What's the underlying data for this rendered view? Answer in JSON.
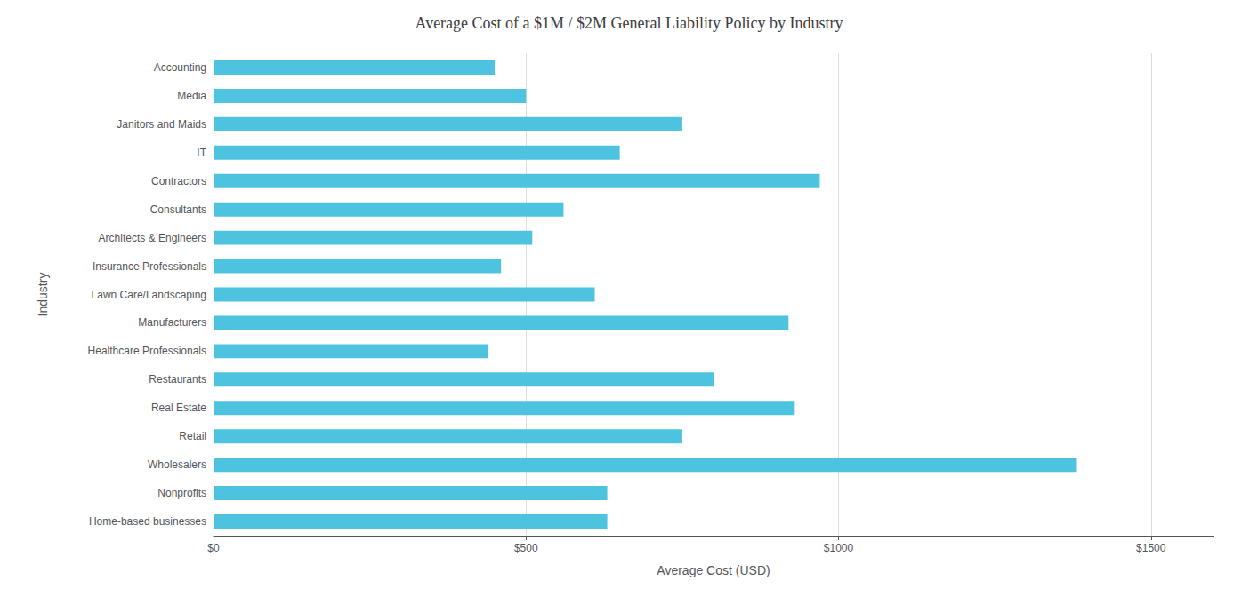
{
  "chart_data": {
    "type": "bar",
    "orientation": "horizontal",
    "title": "Average Cost of a $1M / $2M General Liability Policy by Industry",
    "xlabel": "Average Cost (USD)",
    "ylabel": "Industry",
    "categories": [
      "Accounting",
      "Media",
      "Janitors and Maids",
      "IT",
      "Contractors",
      "Consultants",
      "Architects & Engineers",
      "Insurance Professionals",
      "Lawn Care/Landscaping",
      "Manufacturers",
      "Healthcare Professionals",
      "Restaurants",
      "Real Estate",
      "Retail",
      "Wholesalers",
      "Nonprofits",
      "Home-based businesses"
    ],
    "values": [
      450,
      500,
      750,
      650,
      970,
      560,
      510,
      460,
      610,
      920,
      440,
      800,
      930,
      750,
      1380,
      630,
      630
    ],
    "color": "#4DC3E0",
    "xlim": [
      0,
      1600
    ],
    "xticks": [
      {
        "value": 0,
        "label": "$0"
      },
      {
        "value": 500,
        "label": "$500"
      },
      {
        "value": 1000,
        "label": "$1000"
      },
      {
        "value": 1500,
        "label": "$1500"
      }
    ],
    "grid": true
  }
}
